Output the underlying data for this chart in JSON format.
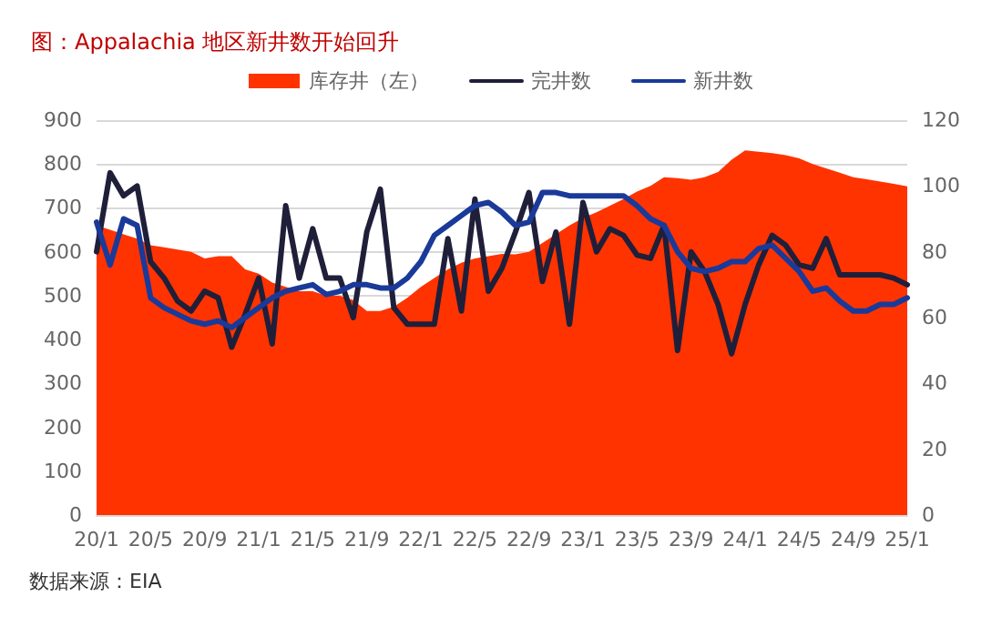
{
  "chart_data": {
    "type": "line",
    "title": "图：Appalachia 地区新井数开始回升",
    "categories": [
      "20/1",
      null,
      null,
      null,
      "20/5",
      null,
      null,
      null,
      "20/9",
      null,
      null,
      null,
      "21/1",
      null,
      null,
      null,
      "21/5",
      null,
      null,
      null,
      "21/9",
      null,
      null,
      null,
      "22/1",
      null,
      null,
      null,
      "22/5",
      null,
      null,
      null,
      "22/9",
      null,
      null,
      null,
      "23/1",
      null,
      null,
      null,
      "23/5",
      null,
      null,
      null,
      "23/9",
      null,
      null,
      null,
      "24/1",
      null,
      null,
      null,
      "24/5",
      null,
      null,
      null,
      "24/9",
      null,
      null,
      null,
      "25/1"
    ],
    "series": [
      {
        "name": "库存井（左）",
        "type": "area",
        "color": "#ff3300",
        "values": [
          660,
          650,
          640,
          630,
          615,
          610,
          605,
          600,
          585,
          590,
          590,
          560,
          550,
          530,
          520,
          510,
          510,
          500,
          500,
          490,
          465,
          465,
          475,
          495,
          520,
          540,
          560,
          575,
          585,
          590,
          595,
          594,
          600,
          620,
          640,
          660,
          677,
          690,
          705,
          720,
          737,
          750,
          770,
          768,
          764,
          770,
          782,
          810,
          831,
          828,
          825,
          820,
          813,
          800,
          790,
          780,
          770,
          765,
          760,
          755,
          749
        ]
      },
      {
        "name": "完井数",
        "axis": "y2",
        "color": "#1f1f3a",
        "values": [
          80,
          104,
          97,
          100,
          77,
          72,
          65,
          62,
          68,
          66,
          51,
          61,
          72,
          52,
          94,
          72,
          87,
          72,
          72,
          60,
          86,
          99,
          63,
          58,
          58,
          58,
          84,
          62,
          96,
          68,
          75,
          86,
          98,
          71,
          86,
          58,
          95,
          80,
          87,
          85,
          79,
          78,
          88,
          50,
          80,
          74,
          64,
          49,
          64,
          76,
          85,
          82,
          76,
          75,
          84,
          73,
          73,
          73,
          73,
          72,
          70
        ]
      },
      {
        "name": "新井数",
        "axis": "y2",
        "color": "#1a3a9a",
        "values": [
          89,
          76,
          90,
          88,
          66,
          63,
          61,
          59,
          58,
          59,
          57,
          60,
          63,
          66,
          68,
          69,
          70,
          67,
          68,
          70,
          70,
          69,
          69,
          72,
          77,
          85,
          88,
          91,
          94,
          95,
          92,
          88,
          89,
          98,
          98,
          97,
          97,
          97,
          97,
          97,
          94,
          90,
          88,
          80,
          75,
          74,
          75,
          77,
          77,
          81,
          82,
          78,
          74,
          68,
          69,
          65,
          62,
          62,
          64,
          64,
          66
        ]
      }
    ],
    "ylim": [
      0,
      900
    ],
    "yticks": [
      0,
      100,
      200,
      300,
      400,
      500,
      600,
      700,
      800,
      900
    ],
    "y2lim": [
      0,
      120
    ],
    "y2ticks": [
      0,
      20,
      40,
      60,
      80,
      100,
      120
    ],
    "grid": "y",
    "legend": "top",
    "marker": "none",
    "line_style": "solid",
    "annotations": [
      "数据来源：EIA"
    ]
  }
}
